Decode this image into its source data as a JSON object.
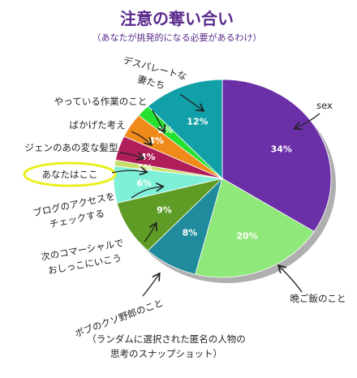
{
  "chart_data": {
    "type": "pie",
    "title": "注意の奪い合い",
    "subtitle": "（あなたが挑発的になる必要があるわけ）",
    "caption_lines": [
      "（ランダムに選択された匿名の人物の",
      "思考のスナップショット）"
    ],
    "slices": [
      {
        "value": 34,
        "label": "34%",
        "name_lines": [
          "sex"
        ],
        "color": "#6b2fa8"
      },
      {
        "value": 20,
        "label": "20%",
        "name_lines": [
          "晩ご飯のこと"
        ],
        "color": "#8fe87a"
      },
      {
        "value": 8,
        "label": "8%",
        "name_lines": [
          "ボブのクソ野郎のこと"
        ],
        "color": "#1f8b9c"
      },
      {
        "value": 9,
        "label": "9%",
        "name_lines": [
          "次のコマーシャルで",
          "おしっこにいこう"
        ],
        "color": "#5e9c25"
      },
      {
        "value": 6,
        "label": "6%",
        "name_lines": [
          "ブログのアクセスを",
          "チェックする"
        ],
        "color": "#7ff0d8"
      },
      {
        "value": 1,
        "label": "1%",
        "name_lines": [
          "あなたはここ"
        ],
        "color": "#c8e06a",
        "highlighted": true
      },
      {
        "value": 4,
        "label": "4%",
        "name_lines": [
          "ジェンのあの変な髪型"
        ],
        "color": "#b01e5a"
      },
      {
        "value": 4,
        "label": "4%",
        "name_lines": [
          "ばかげた考え"
        ],
        "color": "#f08a1a"
      },
      {
        "value": 2,
        "label": "2%",
        "name_lines": [
          "やっている作業のこと"
        ],
        "color": "#25e02c"
      },
      {
        "value": 12,
        "label": "12%",
        "name_lines": [
          "デスパレートな",
          "妻たち"
        ],
        "color": "#12a0a8"
      }
    ],
    "colors": {
      "title": "#5a2a8c",
      "text": "#222222",
      "highlight_circle": "#e8f020"
    }
  }
}
